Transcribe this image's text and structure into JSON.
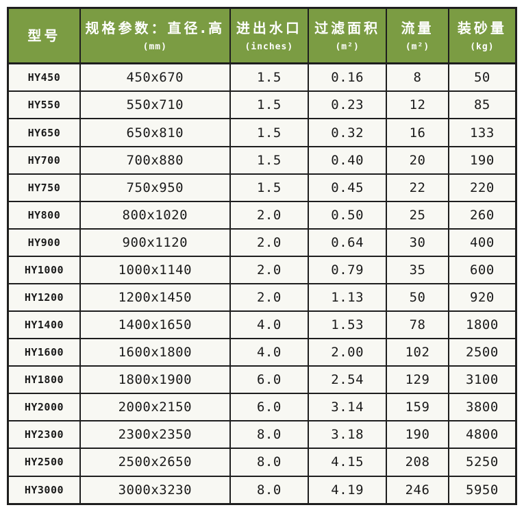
{
  "colors": {
    "header_green": "#7b9c43",
    "border_dark": "#1e1e1e",
    "cell_background": "#f8f8f3",
    "header_text": "#ffffff",
    "body_text": "#1a1a1a"
  },
  "table": {
    "columns": [
      {
        "id": "model",
        "title": "型号",
        "unit": ""
      },
      {
        "id": "spec",
        "title": "规格参数：直径.高",
        "unit": "(mm)"
      },
      {
        "id": "inlet",
        "title": "进出水口",
        "unit": "(inches)"
      },
      {
        "id": "area",
        "title": "过滤面积",
        "unit": "(m²)"
      },
      {
        "id": "flow",
        "title": "流量",
        "unit": "(m²)"
      },
      {
        "id": "sand",
        "title": "装砂量",
        "unit": "(kg)"
      }
    ],
    "rows": [
      {
        "model": "HY450",
        "spec": "450x670",
        "inlet": "1.5",
        "area": "0.16",
        "flow": "8",
        "sand": "50"
      },
      {
        "model": "HY550",
        "spec": "550x710",
        "inlet": "1.5",
        "area": "0.23",
        "flow": "12",
        "sand": "85"
      },
      {
        "model": "HY650",
        "spec": "650x810",
        "inlet": "1.5",
        "area": "0.32",
        "flow": "16",
        "sand": "133"
      },
      {
        "model": "HY700",
        "spec": "700x880",
        "inlet": "1.5",
        "area": "0.40",
        "flow": "20",
        "sand": "190"
      },
      {
        "model": "HY750",
        "spec": "750x950",
        "inlet": "1.5",
        "area": "0.45",
        "flow": "22",
        "sand": "220"
      },
      {
        "model": "HY800",
        "spec": "800x1020",
        "inlet": "2.0",
        "area": "0.50",
        "flow": "25",
        "sand": "260"
      },
      {
        "model": "HY900",
        "spec": "900x1120",
        "inlet": "2.0",
        "area": "0.64",
        "flow": "30",
        "sand": "400"
      },
      {
        "model": "HY1000",
        "spec": "1000x1140",
        "inlet": "2.0",
        "area": "0.79",
        "flow": "35",
        "sand": "600"
      },
      {
        "model": "HY1200",
        "spec": "1200x1450",
        "inlet": "2.0",
        "area": "1.13",
        "flow": "50",
        "sand": "920"
      },
      {
        "model": "HY1400",
        "spec": "1400x1650",
        "inlet": "4.0",
        "area": "1.53",
        "flow": "78",
        "sand": "1800"
      },
      {
        "model": "HY1600",
        "spec": "1600x1800",
        "inlet": "4.0",
        "area": "2.00",
        "flow": "102",
        "sand": "2500"
      },
      {
        "model": "HY1800",
        "spec": "1800x1900",
        "inlet": "6.0",
        "area": "2.54",
        "flow": "129",
        "sand": "3100"
      },
      {
        "model": "HY2000",
        "spec": "2000x2150",
        "inlet": "6.0",
        "area": "3.14",
        "flow": "159",
        "sand": "3800"
      },
      {
        "model": "HY2300",
        "spec": "2300x2350",
        "inlet": "8.0",
        "area": "3.18",
        "flow": "190",
        "sand": "4800"
      },
      {
        "model": "HY2500",
        "spec": "2500x2650",
        "inlet": "8.0",
        "area": "4.15",
        "flow": "208",
        "sand": "5250"
      },
      {
        "model": "HY3000",
        "spec": "3000x3230",
        "inlet": "8.0",
        "area": "4.19",
        "flow": "246",
        "sand": "5950"
      }
    ]
  }
}
